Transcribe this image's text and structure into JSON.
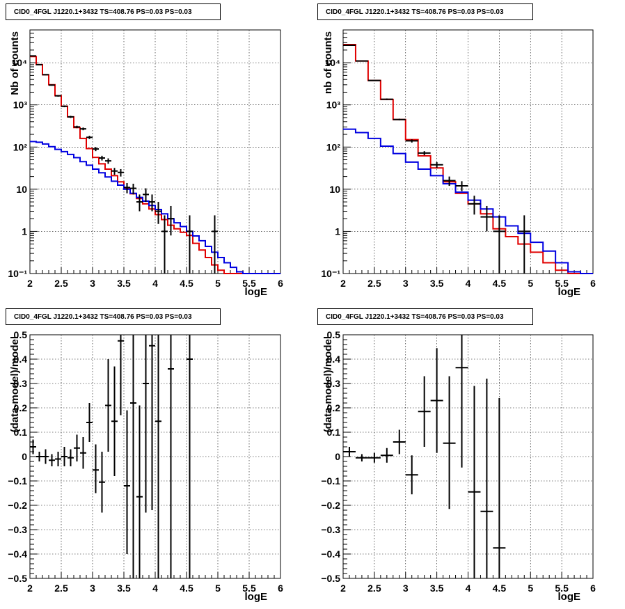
{
  "chart_data": [
    {
      "type": "line",
      "title": "CID0_4FGL J1220.1+3432 TS=408.76 PS=0.03 PS=0.03",
      "xlabel": "logE",
      "ylabel": "Nb of counts",
      "xlim": [
        2,
        6
      ],
      "ylim": [
        0.1,
        60000
      ],
      "yscale": "log",
      "grid": true,
      "x_ticks": [
        "2",
        "2.5",
        "3",
        "3.5",
        "4",
        "4.5",
        "5",
        "5.5",
        "6"
      ],
      "y_ticks": [
        {
          "v": 0.1,
          "label": "10⁻¹"
        },
        {
          "v": 1,
          "label": "1"
        },
        {
          "v": 10,
          "label": "10"
        },
        {
          "v": 100,
          "label": "10²"
        },
        {
          "v": 1000,
          "label": "10³"
        },
        {
          "v": 10000,
          "label": "10⁴"
        }
      ],
      "bin_edges": [
        2.0,
        2.1,
        2.2,
        2.3,
        2.4,
        2.5,
        2.6,
        2.7,
        2.8,
        2.9,
        3.0,
        3.1,
        3.2,
        3.3,
        3.4,
        3.5,
        3.6,
        3.7,
        3.8,
        3.9,
        4.0,
        4.1,
        4.2,
        4.3,
        4.4,
        4.5,
        4.6,
        4.7,
        4.8,
        4.9,
        5.0,
        5.1,
        5.2,
        5.3,
        5.4,
        5.5,
        5.6,
        5.7,
        5.8,
        5.9,
        6.0
      ],
      "series": [
        {
          "color": "#e00000",
          "values": [
            14000,
            9000,
            5200,
            3000,
            1650,
            930,
            520,
            290,
            160,
            92,
            57,
            40,
            30,
            21,
            15,
            10.5,
            7.8,
            6.0,
            4.5,
            3.4,
            2.5,
            1.9,
            1.4,
            1.15,
            0.95,
            0.8,
            0.52,
            0.36,
            0.24,
            0.16,
            0.12,
            0.1,
            0.1,
            0.1,
            0.1,
            0.1,
            0.1,
            0.1,
            0.1,
            0.1
          ]
        },
        {
          "color": "#0000e0",
          "values": [
            135,
            130,
            118,
            102,
            88,
            78,
            67,
            56,
            45,
            37,
            30,
            24.5,
            19.5,
            15.5,
            12.5,
            10,
            8,
            6.4,
            5.2,
            4.1,
            3.3,
            2.6,
            2.0,
            1.6,
            1.3,
            1.0,
            0.78,
            0.6,
            0.44,
            0.32,
            0.24,
            0.18,
            0.14,
            0.11,
            0.1,
            0.1,
            0.1,
            0.1,
            0.1,
            0.1
          ]
        }
      ],
      "points": [
        {
          "x": 2.05,
          "y": 14500,
          "lo": 14200,
          "hi": 14800
        },
        {
          "x": 2.15,
          "y": 9000,
          "lo": 8800,
          "hi": 9200
        },
        {
          "x": 2.25,
          "y": 5200,
          "lo": 5050,
          "hi": 5350
        },
        {
          "x": 2.35,
          "y": 2950,
          "lo": 2850,
          "hi": 3050
        },
        {
          "x": 2.45,
          "y": 1640,
          "lo": 1570,
          "hi": 1710
        },
        {
          "x": 2.55,
          "y": 925,
          "lo": 880,
          "hi": 970
        },
        {
          "x": 2.65,
          "y": 520,
          "lo": 490,
          "hi": 550
        },
        {
          "x": 2.75,
          "y": 300,
          "lo": 280,
          "hi": 320
        },
        {
          "x": 2.85,
          "y": 270,
          "lo": 250,
          "hi": 290
        },
        {
          "x": 2.95,
          "y": 170,
          "lo": 155,
          "hi": 185
        },
        {
          "x": 3.05,
          "y": 90,
          "lo": 80,
          "hi": 100
        },
        {
          "x": 3.15,
          "y": 55,
          "lo": 48,
          "hi": 62
        },
        {
          "x": 3.25,
          "y": 47,
          "lo": 40,
          "hi": 54
        },
        {
          "x": 3.35,
          "y": 27,
          "lo": 22,
          "hi": 32
        },
        {
          "x": 3.45,
          "y": 25,
          "lo": 20,
          "hi": 30
        },
        {
          "x": 3.55,
          "y": 11,
          "lo": 8,
          "hi": 14
        },
        {
          "x": 3.65,
          "y": 10.5,
          "lo": 7.5,
          "hi": 13.5
        },
        {
          "x": 3.75,
          "y": 5,
          "lo": 3,
          "hi": 7.5
        },
        {
          "x": 3.85,
          "y": 7.5,
          "lo": 5,
          "hi": 10.5
        },
        {
          "x": 3.95,
          "y": 5,
          "lo": 3,
          "hi": 7.5
        },
        {
          "x": 4.05,
          "y": 3,
          "lo": 1.5,
          "hi": 5
        },
        {
          "x": 4.15,
          "y": 1,
          "lo": 0.1,
          "hi": 2.4
        },
        {
          "x": 4.25,
          "y": 2,
          "lo": 0.8,
          "hi": 4
        },
        {
          "x": 4.55,
          "y": 1,
          "lo": 0.1,
          "hi": 2.4
        },
        {
          "x": 4.95,
          "y": 1,
          "lo": 0.1,
          "hi": 2.4
        }
      ]
    },
    {
      "type": "line",
      "title": "CID0_4FGL J1220.1+3432 TS=408.76 PS=0.03 PS=0.03",
      "xlabel": "logE",
      "ylabel": "nb of counts",
      "xlim": [
        2,
        6
      ],
      "ylim": [
        0.1,
        60000
      ],
      "yscale": "log",
      "grid": true,
      "x_ticks": [
        "2",
        "2.5",
        "3",
        "3.5",
        "4",
        "4.5",
        "5",
        "5.5",
        "6"
      ],
      "y_ticks": [
        {
          "v": 0.1,
          "label": "10⁻¹"
        },
        {
          "v": 1,
          "label": "1"
        },
        {
          "v": 10,
          "label": "10"
        },
        {
          "v": 100,
          "label": "10²"
        },
        {
          "v": 1000,
          "label": "10³"
        },
        {
          "v": 10000,
          "label": "10⁴"
        }
      ],
      "bin_edges": [
        2.0,
        2.2,
        2.4,
        2.6,
        2.8,
        3.0,
        3.2,
        3.4,
        3.6,
        3.8,
        4.0,
        4.2,
        4.4,
        4.6,
        4.8,
        5.0,
        5.2,
        5.4,
        5.6,
        5.8,
        6.0
      ],
      "series": [
        {
          "color": "#e00000",
          "values": [
            27000,
            11000,
            3800,
            1350,
            450,
            150,
            62,
            32,
            15,
            8,
            4.5,
            2.6,
            1.15,
            0.75,
            0.5,
            0.32,
            0.18,
            0.12,
            0.1,
            0.1
          ]
        },
        {
          "color": "#0000e0",
          "values": [
            265,
            220,
            160,
            105,
            70,
            44,
            30,
            21,
            13.5,
            8.5,
            5.5,
            3.4,
            2.2,
            1.35,
            0.9,
            0.55,
            0.34,
            0.18,
            0.11,
            0.1
          ]
        }
      ],
      "points": [
        {
          "x": 2.1,
          "y": 26000,
          "lo": 25700,
          "hi": 26300
        },
        {
          "x": 2.3,
          "y": 11000,
          "lo": 10800,
          "hi": 11200
        },
        {
          "x": 2.5,
          "y": 3800,
          "lo": 3700,
          "hi": 3900
        },
        {
          "x": 2.7,
          "y": 1360,
          "lo": 1300,
          "hi": 1420
        },
        {
          "x": 2.9,
          "y": 450,
          "lo": 430,
          "hi": 470
        },
        {
          "x": 3.1,
          "y": 140,
          "lo": 128,
          "hi": 152
        },
        {
          "x": 3.3,
          "y": 72,
          "lo": 64,
          "hi": 80
        },
        {
          "x": 3.5,
          "y": 38,
          "lo": 32,
          "hi": 44
        },
        {
          "x": 3.7,
          "y": 16,
          "lo": 12,
          "hi": 20
        },
        {
          "x": 3.9,
          "y": 12,
          "lo": 9,
          "hi": 15.5
        },
        {
          "x": 4.1,
          "y": 4.5,
          "lo": 2.5,
          "hi": 7
        },
        {
          "x": 4.3,
          "y": 2.2,
          "lo": 1,
          "hi": 4
        },
        {
          "x": 4.5,
          "y": 1,
          "lo": 0.1,
          "hi": 2.4
        },
        {
          "x": 4.9,
          "y": 1,
          "lo": 0.1,
          "hi": 2.4
        }
      ]
    },
    {
      "type": "scatter",
      "title": "CID0_4FGL J1220.1+3432 TS=408.76 PS=0.03 PS=0.03",
      "xlabel": "logE",
      "ylabel": "(data-model)/model",
      "xlim": [
        2,
        6
      ],
      "ylim": [
        -0.5,
        0.5
      ],
      "grid": true,
      "x_ticks": [
        "2",
        "2.5",
        "3",
        "3.5",
        "4",
        "4.5",
        "5",
        "5.5",
        "6"
      ],
      "y_ticks": [
        {
          "v": -0.5,
          "label": "−0.5"
        },
        {
          "v": -0.4,
          "label": "−0.4"
        },
        {
          "v": -0.3,
          "label": "−0.3"
        },
        {
          "v": -0.2,
          "label": "−0.2"
        },
        {
          "v": -0.1,
          "label": "−0.1"
        },
        {
          "v": 0,
          "label": "0"
        },
        {
          "v": 0.1,
          "label": "0.1"
        },
        {
          "v": 0.2,
          "label": "0.2"
        },
        {
          "v": 0.3,
          "label": "0.3"
        },
        {
          "v": 0.4,
          "label": "0.4"
        },
        {
          "v": 0.5,
          "label": "0.5"
        }
      ],
      "bin_width": 0.1,
      "points": [
        {
          "x": 2.05,
          "y": 0.04,
          "lo": 0.01,
          "hi": 0.07
        },
        {
          "x": 2.15,
          "y": 0.0,
          "lo": -0.02,
          "hi": 0.02
        },
        {
          "x": 2.25,
          "y": 0.0,
          "lo": -0.03,
          "hi": 0.03
        },
        {
          "x": 2.35,
          "y": -0.015,
          "lo": -0.04,
          "hi": 0.01
        },
        {
          "x": 2.45,
          "y": -0.01,
          "lo": -0.04,
          "hi": 0.02
        },
        {
          "x": 2.55,
          "y": 0.0,
          "lo": -0.04,
          "hi": 0.04
        },
        {
          "x": 2.65,
          "y": -0.005,
          "lo": -0.04,
          "hi": 0.03
        },
        {
          "x": 2.75,
          "y": 0.035,
          "lo": -0.02,
          "hi": 0.09
        },
        {
          "x": 2.85,
          "y": 0.015,
          "lo": -0.05,
          "hi": 0.08
        },
        {
          "x": 2.95,
          "y": 0.14,
          "lo": 0.06,
          "hi": 0.22
        },
        {
          "x": 3.05,
          "y": -0.055,
          "lo": -0.15,
          "hi": 0.05
        },
        {
          "x": 3.15,
          "y": -0.105,
          "lo": -0.23,
          "hi": 0.02
        },
        {
          "x": 3.25,
          "y": 0.21,
          "lo": 0.02,
          "hi": 0.4
        },
        {
          "x": 3.35,
          "y": 0.145,
          "lo": -0.08,
          "hi": 0.37
        },
        {
          "x": 3.45,
          "y": 0.475,
          "lo": 0.17,
          "hi": 0.5
        },
        {
          "x": 3.55,
          "y": -0.12,
          "lo": -0.4,
          "hi": 0.19
        },
        {
          "x": 3.65,
          "y": 0.22,
          "lo": -0.5,
          "hi": 0.5
        },
        {
          "x": 3.75,
          "y": -0.165,
          "lo": -0.5,
          "hi": 0.21
        },
        {
          "x": 3.85,
          "y": 0.3,
          "lo": -0.23,
          "hi": 0.5
        },
        {
          "x": 3.95,
          "y": 0.455,
          "lo": -0.22,
          "hi": 0.5
        },
        {
          "x": 4.05,
          "y": 0.145,
          "lo": -0.5,
          "hi": 0.5
        },
        {
          "x": 4.25,
          "y": 0.36,
          "lo": -0.5,
          "hi": 0.5
        },
        {
          "x": 4.55,
          "y": 0.4,
          "lo": -0.5,
          "hi": 0.5
        }
      ]
    },
    {
      "type": "scatter",
      "title": "CID0_4FGL J1220.1+3432 TS=408.76 PS=0.03 PS=0.03",
      "xlabel": "logE",
      "ylabel": "(data-model)/model",
      "xlim": [
        2,
        6
      ],
      "ylim": [
        -0.5,
        0.5
      ],
      "grid": true,
      "x_ticks": [
        "2",
        "2.5",
        "3",
        "3.5",
        "4",
        "4.5",
        "5",
        "5.5",
        "6"
      ],
      "y_ticks": [
        {
          "v": -0.5,
          "label": "−0.5"
        },
        {
          "v": -0.4,
          "label": "−0.4"
        },
        {
          "v": -0.3,
          "label": "−0.3"
        },
        {
          "v": -0.2,
          "label": "−0.2"
        },
        {
          "v": -0.1,
          "label": "−0.1"
        },
        {
          "v": 0,
          "label": "0"
        },
        {
          "v": 0.1,
          "label": "0.1"
        },
        {
          "v": 0.2,
          "label": "0.2"
        },
        {
          "v": 0.3,
          "label": "0.3"
        },
        {
          "v": 0.4,
          "label": "0.4"
        },
        {
          "v": 0.5,
          "label": "0.5"
        }
      ],
      "bin_width": 0.2,
      "points": [
        {
          "x": 2.1,
          "y": 0.02,
          "lo": 0.0,
          "hi": 0.04
        },
        {
          "x": 2.3,
          "y": -0.005,
          "lo": -0.02,
          "hi": 0.01
        },
        {
          "x": 2.5,
          "y": -0.005,
          "lo": -0.025,
          "hi": 0.015
        },
        {
          "x": 2.7,
          "y": 0.005,
          "lo": -0.025,
          "hi": 0.035
        },
        {
          "x": 2.9,
          "y": 0.06,
          "lo": 0.01,
          "hi": 0.11
        },
        {
          "x": 3.1,
          "y": -0.075,
          "lo": -0.155,
          "hi": 0.005
        },
        {
          "x": 3.3,
          "y": 0.185,
          "lo": 0.04,
          "hi": 0.33
        },
        {
          "x": 3.5,
          "y": 0.23,
          "lo": 0.015,
          "hi": 0.445
        },
        {
          "x": 3.7,
          "y": 0.055,
          "lo": -0.215,
          "hi": 0.33
        },
        {
          "x": 3.9,
          "y": 0.365,
          "lo": -0.045,
          "hi": 0.5
        },
        {
          "x": 4.1,
          "y": -0.145,
          "lo": -0.5,
          "hi": 0.29
        },
        {
          "x": 4.3,
          "y": -0.225,
          "lo": -0.5,
          "hi": 0.32
        },
        {
          "x": 4.5,
          "y": -0.375,
          "lo": -0.5,
          "hi": 0.24
        }
      ]
    }
  ]
}
